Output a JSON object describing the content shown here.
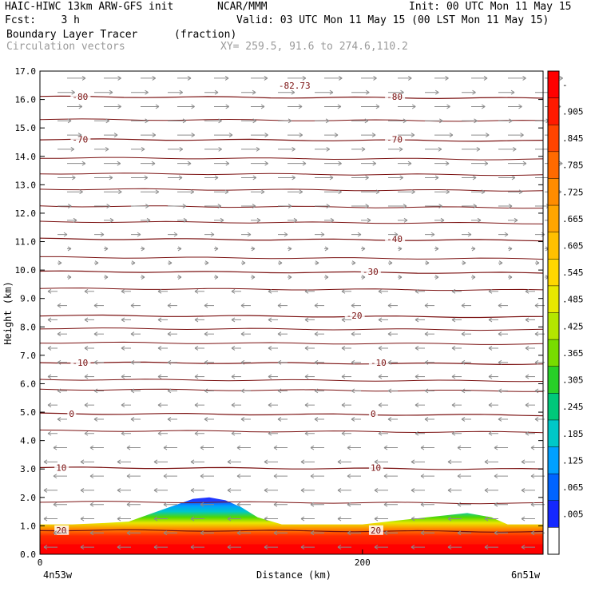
{
  "header": {
    "title_left": "HAIC-HIWC 13km ARW-GFS init",
    "source": "NCAR/MMM",
    "init": "Init: 00 UTC Mon 11 May 15",
    "fcst": "Fcst:    3 h",
    "valid": "Valid: 03 UTC Mon 11 May 15 (00 LST Mon 11 May 15)",
    "field_name": "Boundary Layer Tracer",
    "field_units": "(fraction)",
    "vector_name": "Circulation vectors",
    "xy": "XY= 259.5, 91.6 to 274.6,110.2"
  },
  "chart_data": {
    "type": "heatmap",
    "title": "Boundary Layer Tracer",
    "xlabel": "Distance (km)",
    "ylabel": "Height (km)",
    "xlim": [
      0,
      312
    ],
    "ylim": [
      0,
      17
    ],
    "x_ticks": [
      {
        "value": 0,
        "label": "0"
      },
      {
        "value": 200,
        "label": "200"
      }
    ],
    "x_end_labels": [
      "4n53w",
      "6n51w"
    ],
    "y_ticks": [
      "0.0",
      "1.0",
      "2.0",
      "3.0",
      "4.0",
      "5.0",
      "6.0",
      "7.0",
      "8.0",
      "9.0",
      "10.0",
      "11.0",
      "12.0",
      "13.0",
      "14.0",
      "15.0",
      "16.0",
      "17.0"
    ],
    "colorbar": {
      "labels": [
        "-",
        ".905",
        ".845",
        ".785",
        ".725",
        ".665",
        ".605",
        ".545",
        ".485",
        ".425",
        ".365",
        ".305",
        ".245",
        ".185",
        ".125",
        ".065",
        ".005"
      ],
      "colors": [
        "#ff0000",
        "#ff1a00",
        "#ff4400",
        "#ff6a00",
        "#ff8c00",
        "#ffa500",
        "#ffc000",
        "#ffd700",
        "#e8e800",
        "#b4e600",
        "#78dc00",
        "#28d028",
        "#00c87a",
        "#00c8c8",
        "#00a0ff",
        "#0064ff",
        "#1428ff",
        "#ffffff"
      ]
    },
    "tracer_profile": {
      "x_km": [
        0,
        20,
        40,
        55,
        70,
        85,
        95,
        105,
        115,
        125,
        135,
        150,
        200,
        240,
        265,
        280,
        290,
        312
      ],
      "top_km": [
        1.05,
        1.05,
        1.1,
        1.15,
        1.45,
        1.75,
        1.95,
        2.0,
        1.9,
        1.65,
        1.3,
        1.05,
        1.05,
        1.3,
        1.45,
        1.3,
        1.05,
        1.05
      ]
    },
    "temperature_contours_C": [
      {
        "value": 20,
        "height_km": 0.85,
        "labels": [
          [
            10,
            "20"
          ],
          [
            205,
            "20"
          ]
        ]
      },
      {
        "value": 10,
        "height_km": 3.05,
        "labels": [
          [
            10,
            "10"
          ],
          [
            205,
            "10"
          ]
        ]
      },
      {
        "value": 0,
        "height_km": 4.95,
        "labels": [
          [
            18,
            "0"
          ],
          [
            205,
            "0"
          ]
        ]
      },
      {
        "value": -10,
        "height_km": 6.75,
        "labels": [
          [
            20,
            "-10"
          ],
          [
            205,
            "-10"
          ]
        ]
      },
      {
        "value": -20,
        "height_km": 8.4,
        "labels": [
          [
            190,
            "-20"
          ]
        ]
      },
      {
        "value": -30,
        "height_km": 9.95,
        "labels": [
          [
            200,
            "-30"
          ]
        ]
      },
      {
        "value": -40,
        "height_km": 11.1,
        "labels": [
          [
            215,
            "-40"
          ]
        ]
      },
      {
        "value": -70,
        "height_km": 14.6,
        "labels": [
          [
            20,
            "-70"
          ],
          [
            215,
            "-70"
          ]
        ]
      },
      {
        "value": -80,
        "height_km": 16.1,
        "labels": [
          [
            20,
            "-80"
          ],
          [
            215,
            "-80"
          ]
        ]
      }
    ],
    "extra_contour_heights_km": [
      15.3,
      13.95,
      13.4,
      12.85,
      12.25,
      11.7,
      10.45,
      9.35,
      7.95,
      7.45,
      6.15,
      5.8,
      4.35,
      1.85
    ],
    "annotation": {
      "text": "-82.73",
      "x_km": 148,
      "y_km": 16.5
    }
  }
}
